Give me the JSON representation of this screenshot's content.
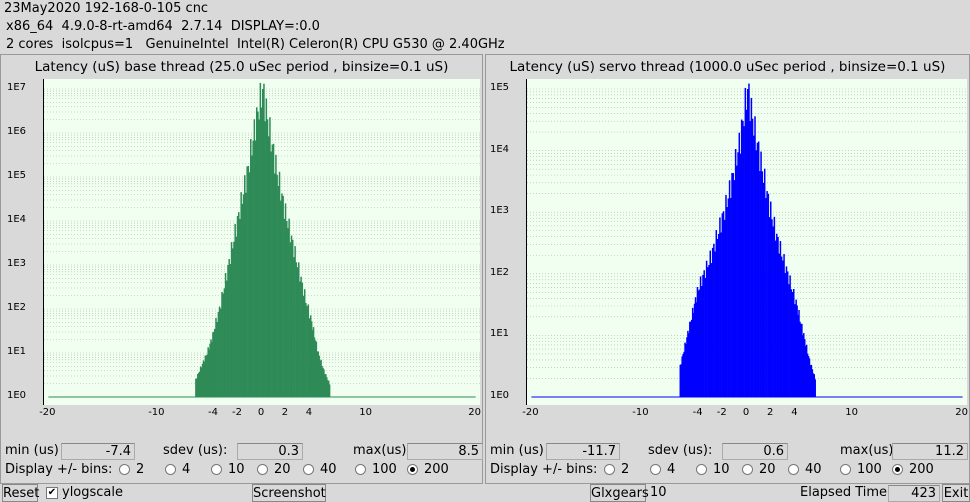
{
  "header": {
    "line1": "23May2020 192-168-0-105 cnc",
    "line2": "x86_64  4.9.0-8-rt-amd64  2.7.14  DISPLAY=:0.0",
    "line3": "2 cores  isolcpus=1   GenuineIntel  Intel(R) Celeron(R) CPU G530 @ 2.40GHz"
  },
  "base": {
    "title": "Latency (uS) base thread (25.0 uSec period , binsize=0.1 uS)",
    "color": "#2e8b57",
    "ytick_labels": [
      "1E0",
      "1E1",
      "1E2",
      "1E3",
      "1E4",
      "1E5",
      "1E6",
      "1E7"
    ],
    "xtick_labels": [
      "-20",
      "-10",
      "-4",
      "-2",
      "0",
      "2",
      "4",
      "10",
      "20"
    ],
    "min_label": "min (us)",
    "min_value": "-7.4",
    "sdev_label": "sdev (us):",
    "sdev_value": "0.3",
    "max_label": "max(us)",
    "max_value": "8.5",
    "display_label": "Display +/- bins:",
    "bin_options": [
      "2",
      "4",
      "10",
      "20",
      "40",
      "100",
      "200"
    ],
    "selected_bins": "200"
  },
  "servo": {
    "title": "Latency (uS) servo thread (1000.0 uSec period , binsize=0.1 uS)",
    "color": "#0000ff",
    "ytick_labels": [
      "1E0",
      "1E1",
      "1E2",
      "1E3",
      "1E4",
      "1E5"
    ],
    "xtick_labels": [
      "-20",
      "-10",
      "-4",
      "-2",
      "0",
      "2",
      "4",
      "10",
      "20"
    ],
    "min_label": "min (us)",
    "min_value": "-11.7",
    "sdev_label": "sdev (us):",
    "sdev_value": "0.6",
    "max_label": "max(us)",
    "max_value": "11.2",
    "display_label": "Display +/- bins:",
    "bin_options": [
      "2",
      "4",
      "10",
      "20",
      "40",
      "100",
      "200"
    ],
    "selected_bins": "200"
  },
  "footer": {
    "reset_label": "Reset",
    "ylogscale_label": "ylogscale",
    "ylogscale_checked": true,
    "screenshot_label": "Screenshot",
    "glxgears_label": "Glxgears",
    "glxgears_value": "10",
    "elapsed_label": "Elapsed Time:",
    "elapsed_value": "423",
    "exit_label": "Exit"
  },
  "chart_data": [
    {
      "type": "bar",
      "title": "Latency (uS) base thread (25.0 uSec period , binsize=0.1 uS)",
      "x_range": [
        -20,
        20
      ],
      "y_scale": "log",
      "ylim": [
        1,
        10000000
      ],
      "grid": true,
      "series": [
        {
          "values_log10": [
            0.4,
            0.7,
            1.0,
            1.4,
            2.0,
            2.8,
            3.6,
            4.4,
            5.2,
            6.2,
            7.0,
            6.0,
            5.1,
            4.3,
            3.6,
            2.9,
            2.2,
            1.6,
            1.0,
            0.6,
            0.3
          ],
          "x": [
            -6.0,
            -5.4,
            -4.8,
            -4.2,
            -3.6,
            -3.0,
            -2.4,
            -1.8,
            -1.2,
            -0.6,
            0.0,
            0.6,
            1.2,
            1.8,
            2.4,
            3.0,
            3.6,
            4.2,
            4.8,
            5.4,
            6.0
          ]
        }
      ]
    },
    {
      "type": "bar",
      "title": "Latency (uS) servo thread (1000.0 uSec period , binsize=0.1 uS)",
      "x_range": [
        -20,
        20
      ],
      "y_scale": "log",
      "ylim": [
        1,
        100000
      ],
      "grid": true,
      "series": [
        {
          "values_log10": [
            0.5,
            0.9,
            1.3,
            1.7,
            2.0,
            2.3,
            2.7,
            3.1,
            3.6,
            4.2,
            5.0,
            4.3,
            3.7,
            3.1,
            2.6,
            2.2,
            1.8,
            1.4,
            1.0,
            0.6,
            0.3
          ],
          "x": [
            -6.0,
            -5.4,
            -4.8,
            -4.2,
            -3.6,
            -3.0,
            -2.4,
            -1.8,
            -1.2,
            -0.6,
            0.0,
            0.6,
            1.2,
            1.8,
            2.4,
            3.0,
            3.6,
            4.2,
            4.8,
            5.4,
            6.0
          ]
        }
      ]
    }
  ]
}
